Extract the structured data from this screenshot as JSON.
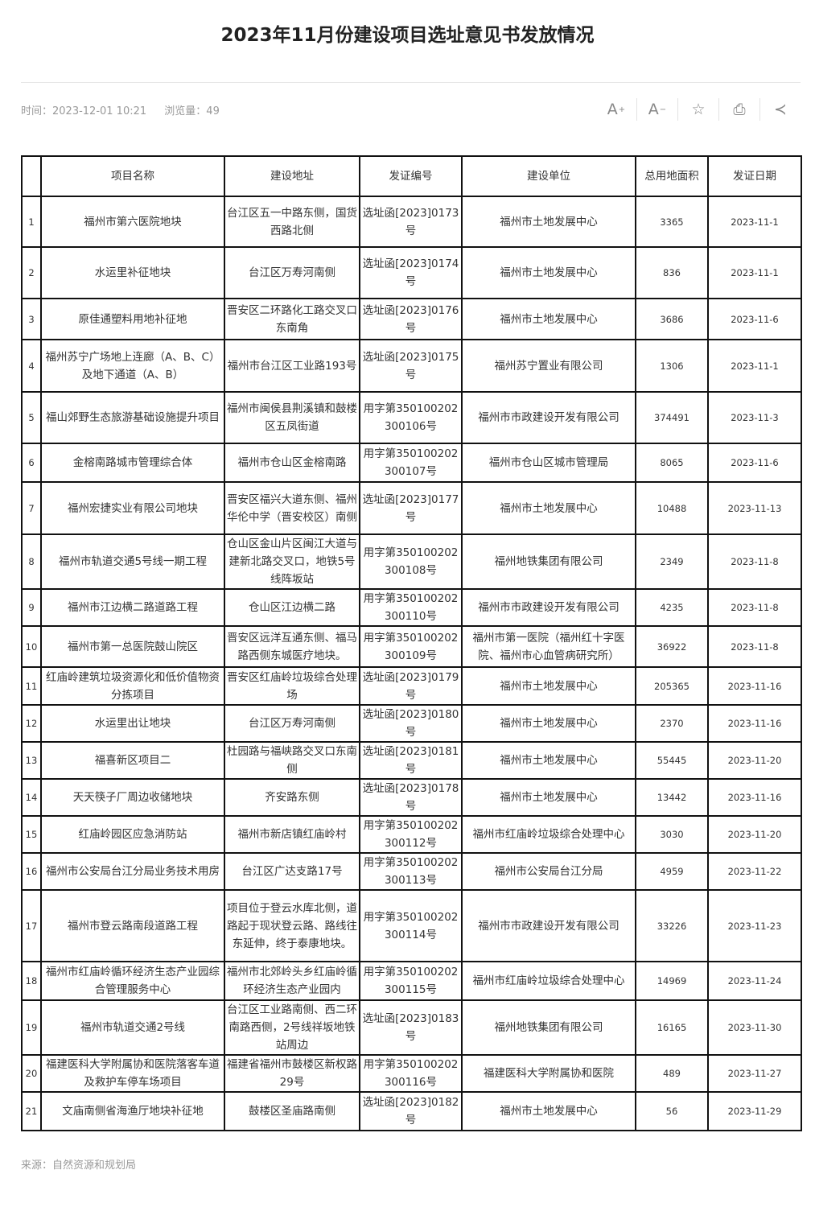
{
  "title": "2023年11月份建设项目选址意见书发放情况",
  "meta": {
    "time": "时间：2023-12-01 10:21",
    "views": "浏览量：49"
  },
  "toolbar": [
    {
      "icon": "font-increase-icon",
      "label": "A",
      "sup": "+"
    },
    {
      "icon": "font-decrease-icon",
      "label": "A",
      "sup": "−"
    },
    {
      "icon": "star-icon",
      "label": "☆"
    },
    {
      "icon": "print-icon",
      "label": "⎙"
    },
    {
      "icon": "share-icon",
      "label": "≺"
    }
  ],
  "table": {
    "headers": [
      "",
      "项目名称",
      "建设地址",
      "发证编号",
      "建设单位",
      "总用地面积",
      "发证日期"
    ],
    "rows": [
      [
        "1",
        "福州市第六医院地块",
        "台江区五一中路东侧，国货西路北侧",
        "选址函[2023]0173号",
        "福州市土地发展中心",
        "3365",
        "2023-11-1"
      ],
      [
        "2",
        "水运里补征地块",
        "台江区万寿河南侧",
        "选址函[2023]0174号",
        "福州市土地发展中心",
        "836",
        "2023-11-1"
      ],
      [
        "3",
        "原佳通塑料用地补征地",
        "晋安区二环路化工路交叉口东南角",
        "选址函[2023]0176号",
        "福州市土地发展中心",
        "3686",
        "2023-11-6"
      ],
      [
        "4",
        "福州苏宁广场地上连廊（A、B、C）及地下通道（A、B）",
        "福州市台江区工业路193号",
        "选址函[2023]0175号",
        "福州苏宁置业有限公司",
        "1306",
        "2023-11-1"
      ],
      [
        "5",
        "福山郊野生态旅游基础设施提升项目",
        "福州市闽侯县荆溪镇和鼓楼区五凤街道",
        "用字第350100202300106号",
        "福州市市政建设开发有限公司",
        "374491",
        "2023-11-3"
      ],
      [
        "6",
        "金榕南路城市管理综合体",
        "福州市仓山区金榕南路",
        "用字第350100202300107号",
        "福州市仓山区城市管理局",
        "8065",
        "2023-11-6"
      ],
      [
        "7",
        "福州宏捷实业有限公司地块",
        "晋安区福兴大道东侧、福州华伦中学（晋安校区）南侧",
        "选址函[2023]0177号",
        "福州市土地发展中心",
        "10488",
        "2023-11-13"
      ],
      [
        "8",
        "福州市轨道交通5号线一期工程",
        "仓山区金山片区闽江大道与建新北路交叉口，地铁5号线阵坂站",
        "用字第350100202300108号",
        "福州地铁集团有限公司",
        "2349",
        "2023-11-8"
      ],
      [
        "9",
        "福州市江边横二路道路工程",
        "仓山区江边横二路",
        "用字第350100202300110号",
        "福州市市政建设开发有限公司",
        "4235",
        "2023-11-8"
      ],
      [
        "10",
        "福州市第一总医院鼓山院区",
        "晋安区远洋互通东侧、福马路西侧东城医疗地块。",
        "用字第350100202300109号",
        "福州市第一医院（福州红十字医院、福州市心血管病研究所）",
        "36922",
        "2023-11-8"
      ],
      [
        "11",
        "红庙岭建筑垃圾资源化和低价值物资分拣项目",
        "晋安区红庙岭垃圾综合处理场",
        "选址函[2023]0179号",
        "福州市土地发展中心",
        "205365",
        "2023-11-16"
      ],
      [
        "12",
        "水运里出让地块",
        "台江区万寿河南侧",
        "选址函[2023]0180号",
        "福州市土地发展中心",
        "2370",
        "2023-11-16"
      ],
      [
        "13",
        "福喜新区项目二",
        "杜园路与福峡路交叉口东南侧",
        "选址函[2023]0181号",
        "福州市土地发展中心",
        "55445",
        "2023-11-20"
      ],
      [
        "14",
        "天天筷子厂周边收储地块",
        "齐安路东侧",
        "选址函[2023]0178号",
        "福州市土地发展中心",
        "13442",
        "2023-11-16"
      ],
      [
        "15",
        "红庙岭园区应急消防站",
        "福州市新店镇红庙岭村",
        "用字第350100202300112号",
        "福州市红庙岭垃圾综合处理中心",
        "3030",
        "2023-11-20"
      ],
      [
        "16",
        "福州市公安局台江分局业务技术用房",
        "台江区广达支路17号",
        "用字第350100202300113号",
        "福州市公安局台江分局",
        "4959",
        "2023-11-22"
      ],
      [
        "17",
        "福州市登云路南段道路工程",
        "项目位于登云水库北侧，道路起于现状登云路、路线往东延伸，终于泰康地块。",
        "用字第350100202300114号",
        "福州市市政建设开发有限公司",
        "33226",
        "2023-11-23"
      ],
      [
        "18",
        "福州市红庙岭循环经济生态产业园综合管理服务中心",
        "福州市北郊岭头乡红庙岭循环经济生态产业园内",
        "用字第350100202300115号",
        "福州市红庙岭垃圾综合处理中心",
        "14969",
        "2023-11-24"
      ],
      [
        "19",
        "福州市轨道交通2号线",
        "台江区工业路南侧、西二环南路西侧，2号线祥坂地铁站周边",
        "选址函[2023]0183号",
        "福州地铁集团有限公司",
        "16165",
        "2023-11-30"
      ],
      [
        "20",
        "福建医科大学附属协和医院落客车道及救护车停车场项目",
        "福建省福州市鼓楼区新权路29号",
        "用字第350100202300116号",
        "福建医科大学附属协和医院",
        "489",
        "2023-11-27"
      ],
      [
        "21",
        "文庙南侧省海渔厅地块补征地",
        "鼓楼区圣庙路南侧",
        "选址函[2023]0182号",
        "福州市土地发展中心",
        "56",
        "2023-11-29"
      ]
    ]
  },
  "source": "来源：自然资源和规划局"
}
